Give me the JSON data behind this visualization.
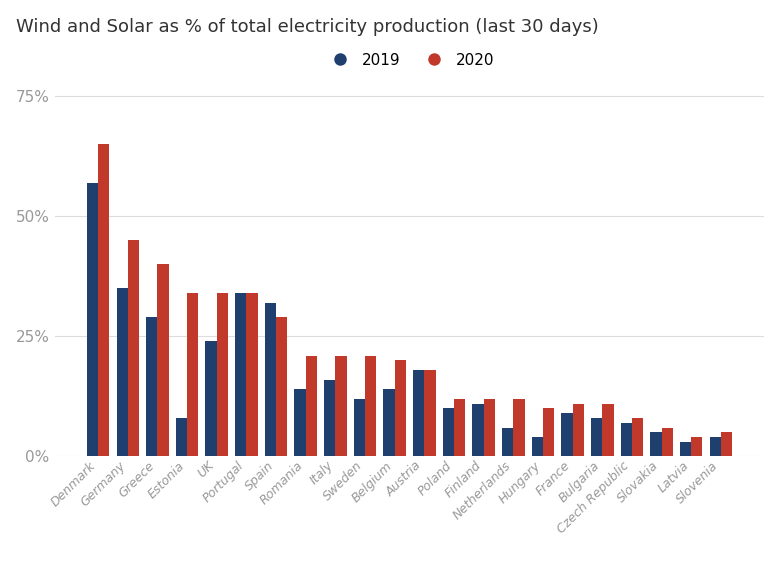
{
  "title": "Wind and Solar as % of total electricity production (last 30 days)",
  "categories": [
    "Denmark",
    "Germany",
    "Greece",
    "Estonia",
    "UK",
    "Portugal",
    "Spain",
    "Romania",
    "Italy",
    "Sweden",
    "Belgium",
    "Austria",
    "Poland",
    "Finland",
    "Netherlands",
    "Hungary",
    "France",
    "Bulgaria",
    "Czech Republic",
    "Slovakia",
    "Latvia",
    "Slovenia"
  ],
  "values_2019": [
    57,
    35,
    29,
    8,
    24,
    34,
    32,
    14,
    16,
    12,
    14,
    18,
    10,
    11,
    6,
    4,
    9,
    8,
    7,
    5,
    3,
    4
  ],
  "values_2020": [
    65,
    45,
    40,
    34,
    34,
    34,
    29,
    21,
    21,
    21,
    20,
    18,
    12,
    12,
    12,
    10,
    11,
    11,
    8,
    6,
    4,
    5
  ],
  "color_2019": "#1f3f6e",
  "color_2020": "#c0392b",
  "ylabel_ticks": [
    0,
    25,
    50,
    75
  ],
  "ylabel_labels": [
    "0%",
    "25%",
    "50%",
    "75%"
  ],
  "background_color": "#ffffff",
  "grid_color": "#dddddd",
  "title_fontsize": 13,
  "tick_color": "#999999",
  "bar_width": 0.38
}
